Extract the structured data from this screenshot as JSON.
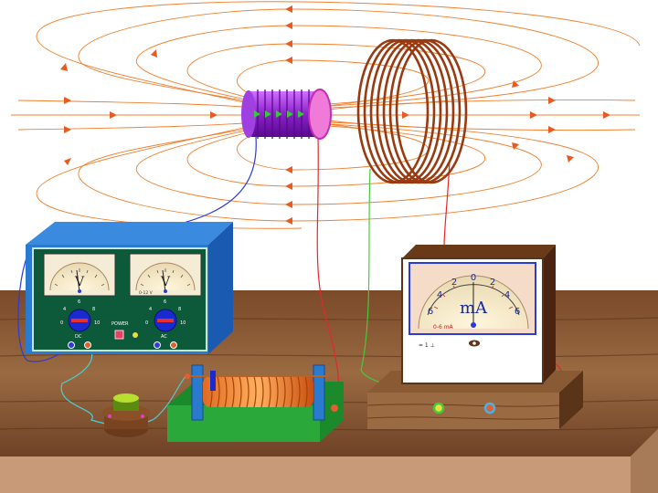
{
  "colors": {
    "field_line": "#f08030",
    "table_top": "#8a5a35",
    "table_front": "#c89a78",
    "psu_body": "#1f6fbf",
    "psu_panel": "#0c5a3a",
    "coil_primary": "#9b30d0",
    "coil_secondary": "#9a3a10",
    "wire_blue": "#2a3adb",
    "wire_red": "#e8262a",
    "wire_green": "#48c83a",
    "wire_cyan": "#4ad0d0"
  },
  "power_supply": {
    "left_meter_symbol": "V",
    "right_meter_symbol": "V",
    "right_meter_tag": "0-12 V",
    "dc_knob": {
      "min_label": "0",
      "max_label": "10",
      "tick_labels": [
        "4",
        "6",
        "8"
      ]
    },
    "ac_knob": {
      "min_label": "0",
      "max_label": "10",
      "tick_labels": [
        "4",
        "6",
        "8"
      ]
    },
    "power_label": "POWER",
    "dc_label": "DC",
    "ac_label": "AC"
  },
  "milliammeter": {
    "unit": "mA",
    "range_label": "0-6 mA",
    "scale_labels": [
      "6",
      "4",
      "2",
      "0",
      "2",
      "4",
      "6"
    ],
    "terminal_label": "= 1 ⊥",
    "needle_value": 0
  }
}
